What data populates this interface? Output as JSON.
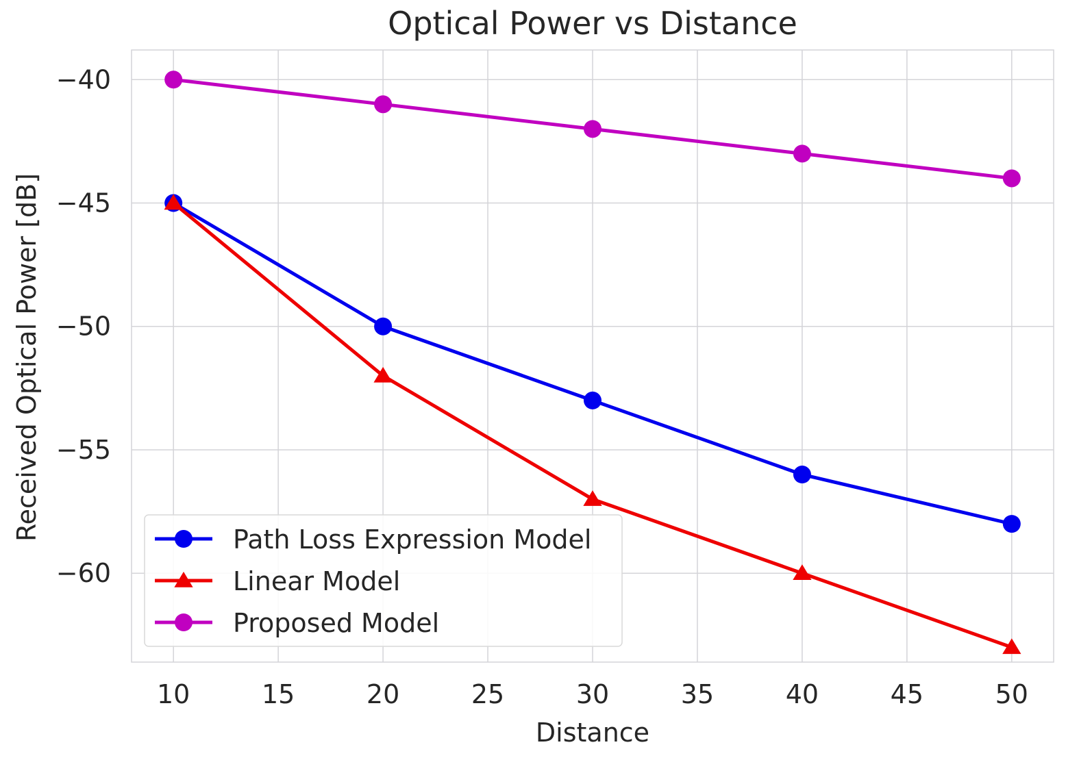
{
  "chart_data": {
    "type": "line",
    "title": "Optical Power vs Distance",
    "xlabel": "Distance",
    "ylabel": "Received Optical Power [dB]",
    "xlim": [
      8,
      52
    ],
    "ylim": [
      -63.6,
      -38.8
    ],
    "x_ticks": [
      10,
      15,
      20,
      25,
      30,
      35,
      40,
      45,
      50
    ],
    "y_ticks": [
      -40,
      -45,
      -50,
      -55,
      -60
    ],
    "grid": true,
    "legend_position": "lower-left",
    "x": [
      10,
      20,
      30,
      40,
      50
    ],
    "series": [
      {
        "name": "Path Loss Expression Model",
        "values": [
          -45,
          -50,
          -53,
          -56,
          -58
        ],
        "color": "#0000ee",
        "marker": "circle"
      },
      {
        "name": "Linear Model",
        "values": [
          -45,
          -52,
          -57,
          -60,
          -63
        ],
        "color": "#ee0000",
        "marker": "triangle"
      },
      {
        "name": "Proposed Model",
        "values": [
          -40,
          -41,
          -42,
          -43,
          -44
        ],
        "color": "#c000c0",
        "marker": "circle"
      }
    ]
  }
}
